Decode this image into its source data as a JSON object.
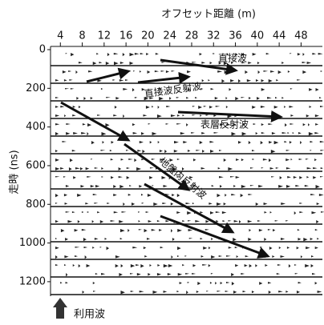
{
  "chart_data": {
    "type": "radargram",
    "x_label": "オフセット距離 (m)",
    "y_label": "走時 (ns)",
    "xlim": [
      2.2,
      51.9
    ],
    "xticks": [
      4,
      8,
      12,
      16,
      20,
      24,
      28,
      32,
      36,
      40,
      44,
      48
    ],
    "ylim": [
      0,
      1275
    ],
    "yticks": [
      0,
      200,
      400,
      600,
      800,
      1000,
      1200
    ],
    "annotations": [
      "直接波",
      "直接波反射波",
      "表層反射波",
      "地盤内反射波",
      "利用波"
    ]
  }
}
